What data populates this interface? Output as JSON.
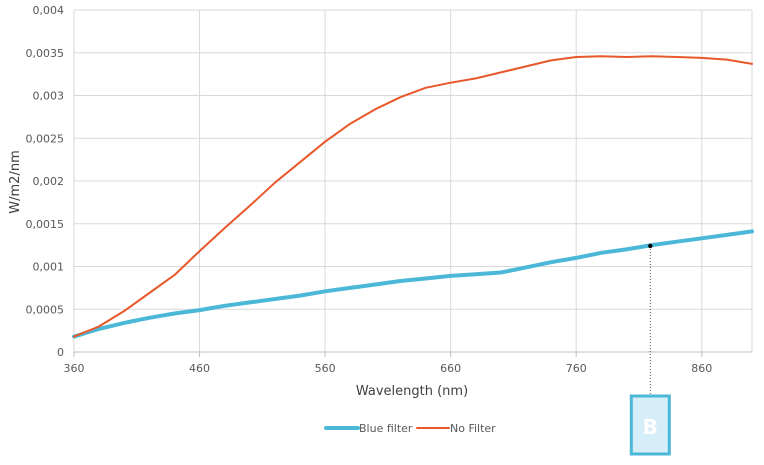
{
  "chart_data": {
    "type": "line",
    "xlabel": "Wavelength (nm)",
    "ylabel": "W/m2/nm",
    "xlim": [
      360,
      900
    ],
    "ylim": [
      0,
      0.004
    ],
    "x_ticks": [
      360,
      460,
      560,
      660,
      760,
      860
    ],
    "x_tick_labels": [
      "360",
      "460",
      "560",
      "660",
      "760",
      "860"
    ],
    "y_ticks": [
      0,
      0.0005,
      0.001,
      0.0015,
      0.002,
      0.0025,
      0.003,
      0.0035,
      0.004
    ],
    "y_tick_labels": [
      "0",
      "0,0005",
      "0,001",
      "0,0015",
      "0,002",
      "0,0025",
      "0,003",
      "0,0035",
      "0,004"
    ],
    "grid": "vertical and horizontal",
    "legend_position": "bottom",
    "series": [
      {
        "name": "Blue filter",
        "color": "#4bb8d8",
        "x": [
          360,
          380,
          400,
          420,
          440,
          460,
          480,
          500,
          520,
          540,
          560,
          580,
          600,
          620,
          640,
          660,
          680,
          700,
          720,
          740,
          760,
          780,
          800,
          820,
          840,
          860,
          880,
          900
        ],
        "values": [
          0.00018,
          0.00027,
          0.00034,
          0.0004,
          0.00045,
          0.00049,
          0.00054,
          0.00058,
          0.00062,
          0.00066,
          0.00071,
          0.00075,
          0.00079,
          0.00083,
          0.00086,
          0.00089,
          0.00091,
          0.00093,
          0.00099,
          0.00105,
          0.0011,
          0.00116,
          0.0012,
          0.00125,
          0.00129,
          0.00133,
          0.00137,
          0.00141
        ]
      },
      {
        "name": "No Filter",
        "color": "#e8582a",
        "x": [
          360,
          380,
          400,
          420,
          440,
          460,
          480,
          500,
          520,
          540,
          560,
          580,
          600,
          620,
          640,
          660,
          680,
          700,
          720,
          740,
          760,
          780,
          800,
          820,
          840,
          860,
          880,
          900
        ],
        "values": [
          0.00018,
          0.0003,
          0.00048,
          0.00069,
          0.0009,
          0.00118,
          0.00145,
          0.00171,
          0.00198,
          0.00222,
          0.00246,
          0.00267,
          0.00284,
          0.00298,
          0.00309,
          0.00315,
          0.0032,
          0.00327,
          0.00334,
          0.00341,
          0.00345,
          0.00346,
          0.00345,
          0.00346,
          0.00345,
          0.00344,
          0.00342,
          0.00337
        ]
      }
    ],
    "annotation": {
      "label": "B",
      "x": 819,
      "y": 0.00124,
      "color": "#4bb8d8"
    }
  }
}
